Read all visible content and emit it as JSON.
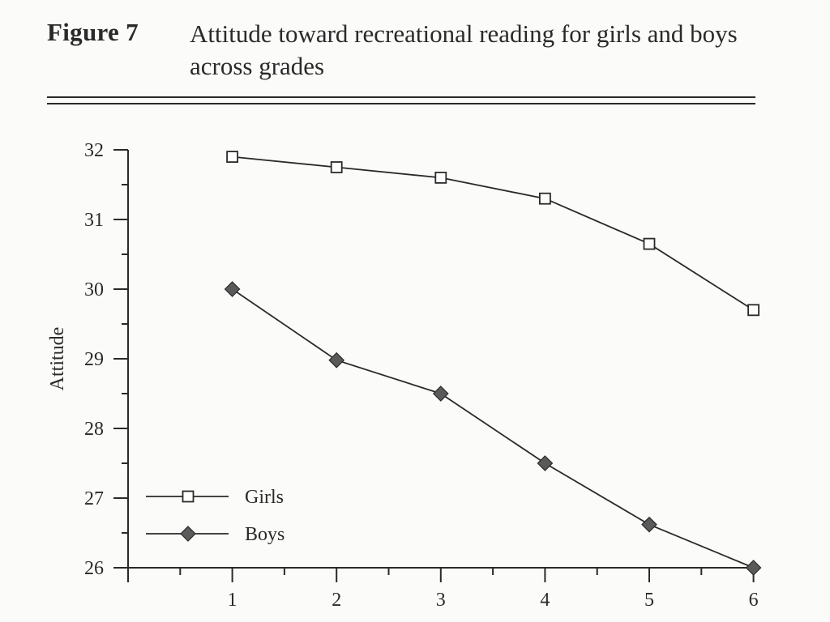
{
  "figure": {
    "label": "Figure 7",
    "title": "Attitude toward recreational reading for girls and boys across grades"
  },
  "colors": {
    "ink": "#2a2a2a",
    "boys_fill": "#5a5a5a",
    "girls_fill": "#ffffff",
    "paper": "#fbfbf9"
  },
  "chart_data": {
    "type": "line",
    "title": "Attitude toward recreational reading for girls and boys across grades",
    "xlabel": "",
    "ylabel": "Attitude",
    "x": [
      1,
      2,
      3,
      4,
      5,
      6
    ],
    "xlim": [
      0,
      6
    ],
    "ylim": [
      26,
      32
    ],
    "yticks": [
      26,
      27,
      28,
      29,
      30,
      31,
      32
    ],
    "xticks": [
      1,
      2,
      3,
      4,
      5,
      6
    ],
    "grid": false,
    "legend_position": "bottom-left",
    "series": [
      {
        "name": "Girls",
        "marker": "open-square",
        "values": [
          31.9,
          31.75,
          31.6,
          31.3,
          30.65,
          29.7
        ]
      },
      {
        "name": "Boys",
        "marker": "filled-diamond",
        "values": [
          30.0,
          28.98,
          28.5,
          27.5,
          26.62,
          26.0
        ]
      }
    ]
  }
}
